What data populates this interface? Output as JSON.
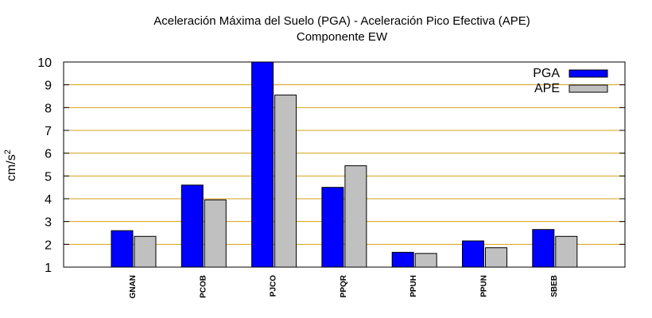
{
  "chart_data": {
    "type": "bar",
    "title": "Aceleración Máxima del Suelo (PGA) -  Aceleración Pico Efectiva (APE)",
    "subtitle": "Componente EW",
    "ylabel": "cm/s",
    "ylabel_superscript": "2",
    "ylim": [
      1,
      10
    ],
    "yticks": [
      1,
      2,
      3,
      4,
      5,
      6,
      7,
      8,
      9,
      10
    ],
    "grid": true,
    "legend_position": "top-right",
    "categories": [
      "GNAN",
      "PCOB",
      "PJCO",
      "PPQR",
      "PPUH",
      "PPUN",
      "SBEB"
    ],
    "series": [
      {
        "name": "PGA",
        "color": "#0000ff",
        "values": [
          2.6,
          4.6,
          10.0,
          4.5,
          1.65,
          2.15,
          2.65
        ]
      },
      {
        "name": "APE",
        "color": "#c0c0c0",
        "values": [
          2.35,
          3.95,
          8.55,
          5.45,
          1.6,
          1.85,
          2.35
        ]
      }
    ],
    "grid_color": "#d4a017"
  }
}
